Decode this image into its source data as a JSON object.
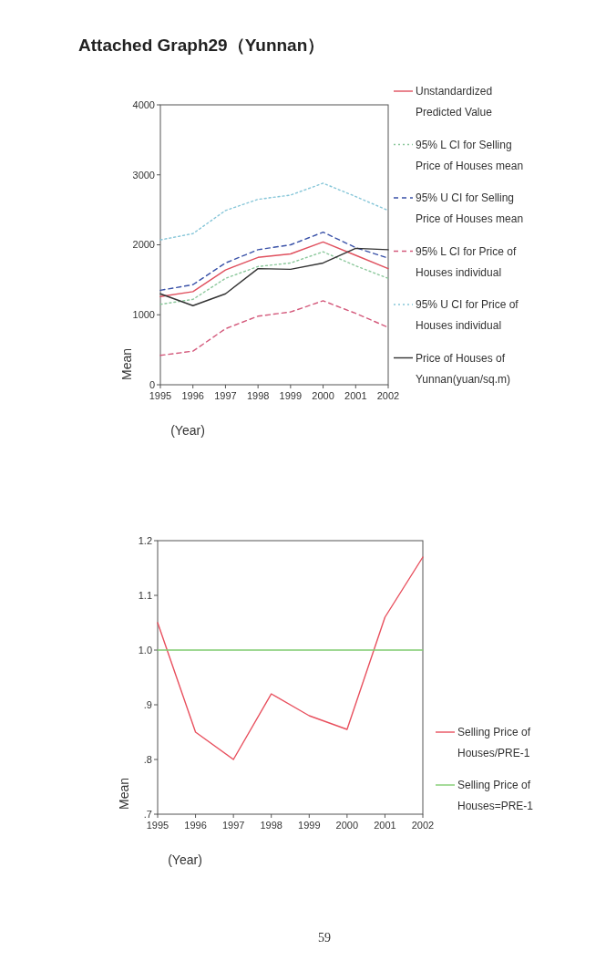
{
  "chart_data": [
    {
      "type": "line",
      "title": "Attached Graph29（Yunnan）",
      "xlabel": "(Year)",
      "ylabel": "Mean",
      "x": [
        1995,
        1996,
        1997,
        1998,
        1999,
        2000,
        2001,
        2002
      ],
      "xlim": [
        1995,
        2002
      ],
      "xticks": [
        1995,
        1996,
        1997,
        1998,
        1999,
        2000,
        2001,
        2002
      ],
      "ylim": [
        0,
        4000
      ],
      "yticks": [
        0,
        1000,
        2000,
        3000,
        4000
      ],
      "grid": false,
      "legend": "right",
      "marker": "none",
      "series": [
        {
          "name": "Unstandardized Predicted Value",
          "color": "#e0505e",
          "line_style": "solid",
          "values": [
            1260,
            1330,
            1640,
            1820,
            1870,
            2040,
            1850,
            1660
          ]
        },
        {
          "name": "95% L CI for Selling Price of Houses mean",
          "color": "#8cc89c",
          "line_style": "dotted",
          "values": [
            1150,
            1220,
            1520,
            1690,
            1740,
            1900,
            1700,
            1520
          ]
        },
        {
          "name": "95% U CI for Selling Price of Houses mean",
          "color": "#3a52a8",
          "line_style": "dashed",
          "values": [
            1350,
            1430,
            1740,
            1930,
            2000,
            2180,
            1960,
            1810
          ]
        },
        {
          "name": "95% L CI for Price of Houses individual",
          "color": "#d45a7c",
          "line_style": "dashed",
          "values": [
            420,
            480,
            800,
            980,
            1040,
            1200,
            1020,
            820
          ]
        },
        {
          "name": "95% U CI for Price of Houses individual",
          "color": "#86c6d8",
          "line_style": "dotted",
          "values": [
            2070,
            2160,
            2490,
            2650,
            2710,
            2880,
            2690,
            2490
          ]
        },
        {
          "name": "Price of Houses of Yunnan(yuan/sq.m)",
          "color": "#333333",
          "line_style": "solid",
          "values": [
            1300,
            1130,
            1300,
            1660,
            1650,
            1740,
            1950,
            1930
          ]
        }
      ]
    },
    {
      "type": "line",
      "xlabel": "(Year)",
      "ylabel": "Mean",
      "x": [
        1995,
        1996,
        1997,
        1998,
        1999,
        2000,
        2001,
        2002
      ],
      "xlim": [
        1995,
        2002
      ],
      "xticks": [
        1995,
        1996,
        1997,
        1998,
        1999,
        2000,
        2001,
        2002
      ],
      "ylim": [
        0.7,
        1.2
      ],
      "yticks": [
        {
          "value": 0.7,
          "label": ".7"
        },
        {
          "value": 0.8,
          "label": ".8"
        },
        {
          "value": 0.9,
          "label": ".9"
        },
        {
          "value": 1.0,
          "label": "1.0"
        },
        {
          "value": 1.1,
          "label": "1.1"
        },
        {
          "value": 1.2,
          "label": "1.2"
        }
      ],
      "grid": false,
      "legend": "right",
      "marker": "none",
      "annotations": [
        "59"
      ],
      "series": [
        {
          "name": "Selling Price of Houses/PRE-1",
          "color": "#e8505e",
          "line_style": "solid",
          "values": [
            1.05,
            0.85,
            0.8,
            0.92,
            0.88,
            0.855,
            1.06,
            1.17
          ]
        },
        {
          "name": "Selling Price of Houses=PRE-1",
          "color": "#80cc70",
          "line_style": "solid",
          "values": [
            1.0,
            1.0,
            1.0,
            1.0,
            1.0,
            1.0,
            1.0,
            1.0
          ]
        }
      ]
    }
  ]
}
